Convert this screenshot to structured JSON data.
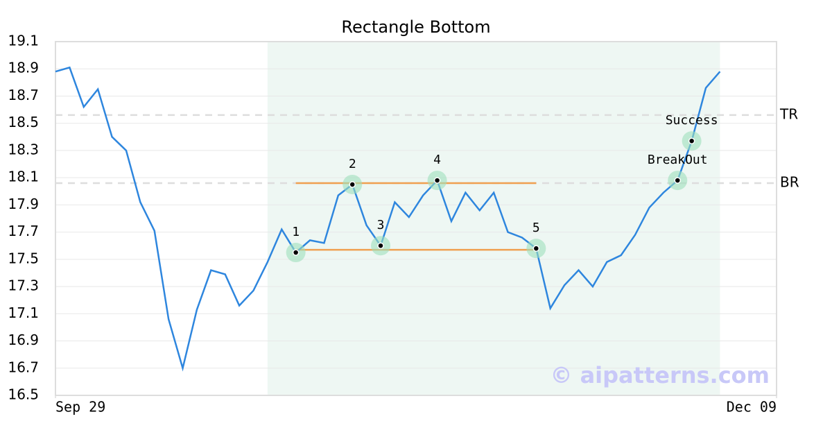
{
  "chart_data": {
    "type": "line",
    "title": "Rectangle Bottom",
    "x": [
      0,
      1,
      2,
      3,
      4,
      5,
      6,
      7,
      8,
      9,
      10,
      11,
      12,
      13,
      14,
      15,
      16,
      17,
      18,
      19,
      20,
      21,
      22,
      23,
      24,
      25,
      26,
      27,
      28,
      29,
      30,
      31,
      32,
      33,
      34,
      35,
      36,
      37,
      38,
      39,
      40,
      41,
      42,
      43,
      44,
      45,
      46,
      47
    ],
    "xlim": [
      0,
      51
    ],
    "xticks": [
      {
        "value": 0,
        "label": "Sep 29"
      },
      {
        "value": 51,
        "label": "Dec 09"
      }
    ],
    "ylim": [
      16.5,
      19.1
    ],
    "yticks": [
      16.5,
      16.7,
      16.9,
      17.1,
      17.3,
      17.5,
      17.7,
      17.9,
      18.1,
      18.3,
      18.5,
      18.7,
      18.9,
      19.1
    ],
    "grid": true,
    "series": [
      {
        "color": "#2e86de",
        "values": [
          18.88,
          18.91,
          18.62,
          18.75,
          18.4,
          18.3,
          17.92,
          17.71,
          17.06,
          16.7,
          17.13,
          17.42,
          17.39,
          17.16,
          17.27,
          17.48,
          17.72,
          17.55,
          17.64,
          17.62,
          17.97,
          18.05,
          17.75,
          17.6,
          17.92,
          17.81,
          17.97,
          18.08,
          17.78,
          17.99,
          17.86,
          17.99,
          17.7,
          17.66,
          17.58,
          17.14,
          17.31,
          17.42,
          17.3,
          17.48,
          17.53,
          17.68,
          17.88,
          17.99,
          18.08,
          18.37,
          18.76,
          18.88
        ]
      }
    ],
    "highlight_x": [
      15,
      47
    ],
    "levels": [
      {
        "label": "TR",
        "value": 18.56
      },
      {
        "label": "BR",
        "value": 18.06
      }
    ],
    "rectangle": {
      "x": [
        17,
        34
      ],
      "top": 18.06,
      "bottom": 17.57,
      "color": "#f0a050"
    },
    "points": [
      {
        "label": "1",
        "x": 17,
        "y": 17.55
      },
      {
        "label": "2",
        "x": 21,
        "y": 18.05
      },
      {
        "label": "3",
        "x": 23,
        "y": 17.6
      },
      {
        "label": "4",
        "x": 27,
        "y": 18.08
      },
      {
        "label": "5",
        "x": 34,
        "y": 17.58
      },
      {
        "label": "BreakOut",
        "x": 44,
        "y": 18.08
      },
      {
        "label": "Success",
        "x": 45,
        "y": 18.37
      }
    ],
    "watermark": "© aipatterns.com"
  }
}
